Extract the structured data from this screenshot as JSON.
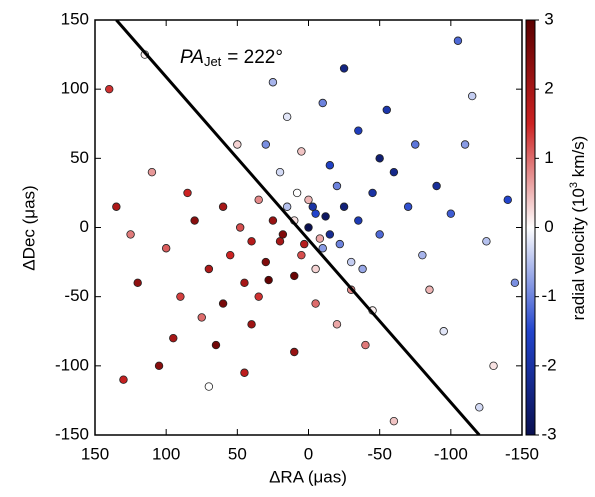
{
  "chart_data": {
    "type": "scatter",
    "xlabel": "ΔRA (μas)",
    "ylabel": "ΔDec (μas)",
    "annotation": {
      "prefix": "PA",
      "subscript": "Jet",
      "text": "= 222°"
    },
    "colorbar": {
      "label": "radial velocity (10",
      "superscript": "3",
      "label_end": " km/s)",
      "clim": [
        -3,
        3
      ],
      "ticks": [
        3,
        2,
        1,
        0,
        -1,
        -2,
        -3
      ],
      "colormap": [
        "#0a1050",
        "#2244cc",
        "#ffffff",
        "#cc2222",
        "#5a0000"
      ]
    },
    "xlim": [
      150,
      -150
    ],
    "ylim": [
      -150,
      150
    ],
    "xticks": [
      150,
      100,
      50,
      0,
      -50,
      -100,
      -150
    ],
    "yticks": [
      150,
      100,
      50,
      0,
      -50,
      -100,
      -150
    ],
    "jet_line": {
      "x": [
        135,
        -120
      ],
      "y": [
        150,
        -150
      ],
      "color": "#000000"
    },
    "x": [
      10,
      -5,
      20,
      -15,
      0,
      30,
      -25,
      5,
      -10,
      15,
      40,
      -35,
      25,
      -20,
      10,
      -5,
      45,
      -45,
      35,
      -30,
      0,
      55,
      -50,
      20,
      -15,
      60,
      -60,
      5,
      -5,
      70,
      -70,
      80,
      -80,
      30,
      -35,
      40,
      -20,
      90,
      -90,
      15,
      -40,
      65,
      100,
      -100,
      110,
      -110,
      120,
      -125,
      130,
      -105,
      140,
      -130,
      -120,
      115,
      70,
      -60,
      45,
      -55,
      25,
      -25,
      50,
      -75,
      85,
      -85,
      10,
      -10,
      95,
      -95,
      125,
      -140,
      60,
      -50,
      35,
      -30,
      18,
      -12,
      8,
      -22,
      28,
      -38,
      48,
      -8,
      3,
      -3,
      75,
      -45,
      105,
      -115,
      135,
      -145
    ],
    "y": [
      5,
      10,
      -10,
      -5,
      20,
      -25,
      15,
      -20,
      -15,
      15,
      -10,
      5,
      5,
      30,
      -35,
      -30,
      -40,
      25,
      20,
      -25,
      0,
      -20,
      -5,
      40,
      45,
      -55,
      40,
      55,
      -55,
      -30,
      15,
      5,
      -20,
      60,
      70,
      -70,
      -70,
      -50,
      30,
      80,
      -85,
      -85,
      -15,
      10,
      40,
      60,
      -40,
      -10,
      -110,
      135,
      100,
      -100,
      -130,
      125,
      -115,
      -140,
      -105,
      85,
      105,
      115,
      60,
      60,
      25,
      -45,
      -90,
      90,
      -80,
      -75,
      -5,
      20,
      15,
      50,
      -50,
      -45,
      -5,
      8,
      25,
      -12,
      -38,
      -30,
      0,
      -8,
      -12,
      15,
      -65,
      -60,
      -100,
      95,
      15,
      -40
    ],
    "values": [
      0.2,
      -1.5,
      2.0,
      -2.2,
      0.5,
      2.5,
      -2.5,
      1.2,
      -0.8,
      -0.5,
      1.8,
      -1.8,
      2.2,
      -1.0,
      2.8,
      0.3,
      2.0,
      -2.0,
      0.8,
      -0.4,
      -3,
      1.5,
      -1.2,
      -0.3,
      -1.6,
      2.6,
      -2.3,
      0.4,
      1.0,
      1.9,
      -1.4,
      2.4,
      -0.6,
      -0.9,
      -1.7,
      2.1,
      0.6,
      1.3,
      -2.1,
      -0.2,
      0.9,
      2.7,
      1.1,
      -1.3,
      0.7,
      -0.8,
      2.3,
      -0.5,
      1.6,
      -1.2,
      1.4,
      0.2,
      -0.3,
      0.1,
      0.0,
      0.4,
      1.7,
      -1.9,
      -0.6,
      -2.4,
      0.3,
      -1.1,
      1.5,
      0.5,
      2.2,
      -1.0,
      2.0,
      -0.2,
      0.9,
      -1.5,
      2.0,
      -2.6,
      1.4,
      0.8,
      2.5,
      -2.8,
      0.0,
      -1.0,
      2.9,
      -0.7,
      1.2,
      0.6,
      1.8,
      -2.0,
      1.0,
      0.1,
      2.4,
      -0.4,
      1.9,
      -0.9
    ]
  }
}
